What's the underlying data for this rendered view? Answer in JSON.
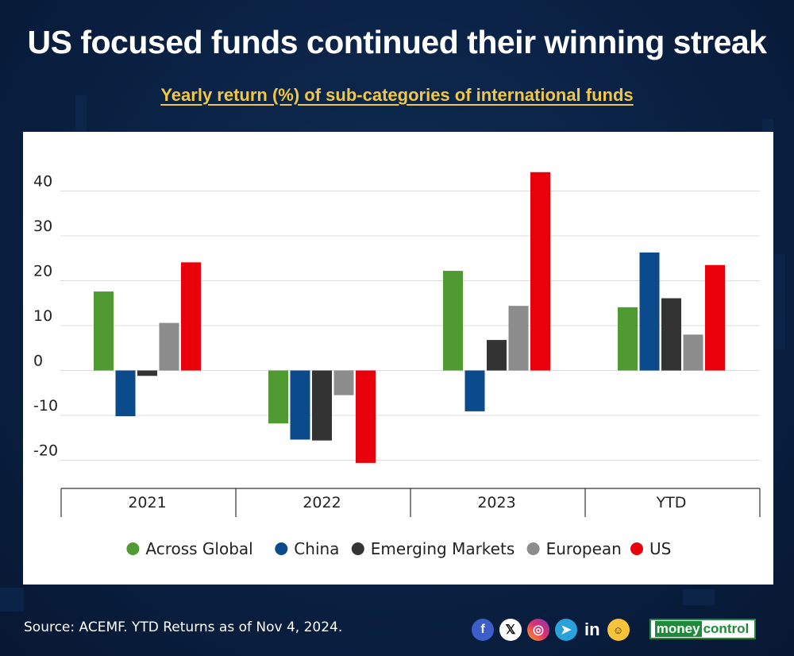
{
  "header": {
    "title": "US focused funds continued their winning streak",
    "subtitle": "Yearly return (%) of sub-categories of international funds"
  },
  "chart_data": {
    "type": "bar",
    "categories": [
      "2021",
      "2022",
      "2023",
      "YTD"
    ],
    "series": [
      {
        "name": "Across Global",
        "color": "#4f9a33",
        "values": [
          17.6,
          -11.8,
          22.2,
          14.1
        ]
      },
      {
        "name": "China",
        "color": "#0b4a8b",
        "values": [
          -10.2,
          -15.4,
          -9.1,
          26.3
        ]
      },
      {
        "name": "Emerging Markets",
        "color": "#333333",
        "values": [
          -1.2,
          -15.6,
          6.8,
          16.1
        ]
      },
      {
        "name": "European",
        "color": "#8c8c8c",
        "values": [
          10.6,
          -5.5,
          14.4,
          8.0
        ]
      },
      {
        "name": "US",
        "color": "#e8000b",
        "values": [
          24.1,
          -20.6,
          44.2,
          23.5
        ]
      }
    ],
    "yticks": [
      "40",
      "30",
      "20",
      "10",
      "0",
      "-10",
      "-20"
    ],
    "ylim": [
      -25,
      45
    ],
    "xlabel": "",
    "ylabel": "",
    "grid": true,
    "legend": "bottom"
  },
  "footer": {
    "source": "Source: ACEMF. YTD Returns as of Nov 4, 2024.",
    "social": {
      "facebook": "f",
      "x": "𝕏",
      "instagram": "◎",
      "telegram": "➤",
      "linkedin": "in",
      "mascot": "☺"
    },
    "brand_part1": "money",
    "brand_part2": "control"
  }
}
